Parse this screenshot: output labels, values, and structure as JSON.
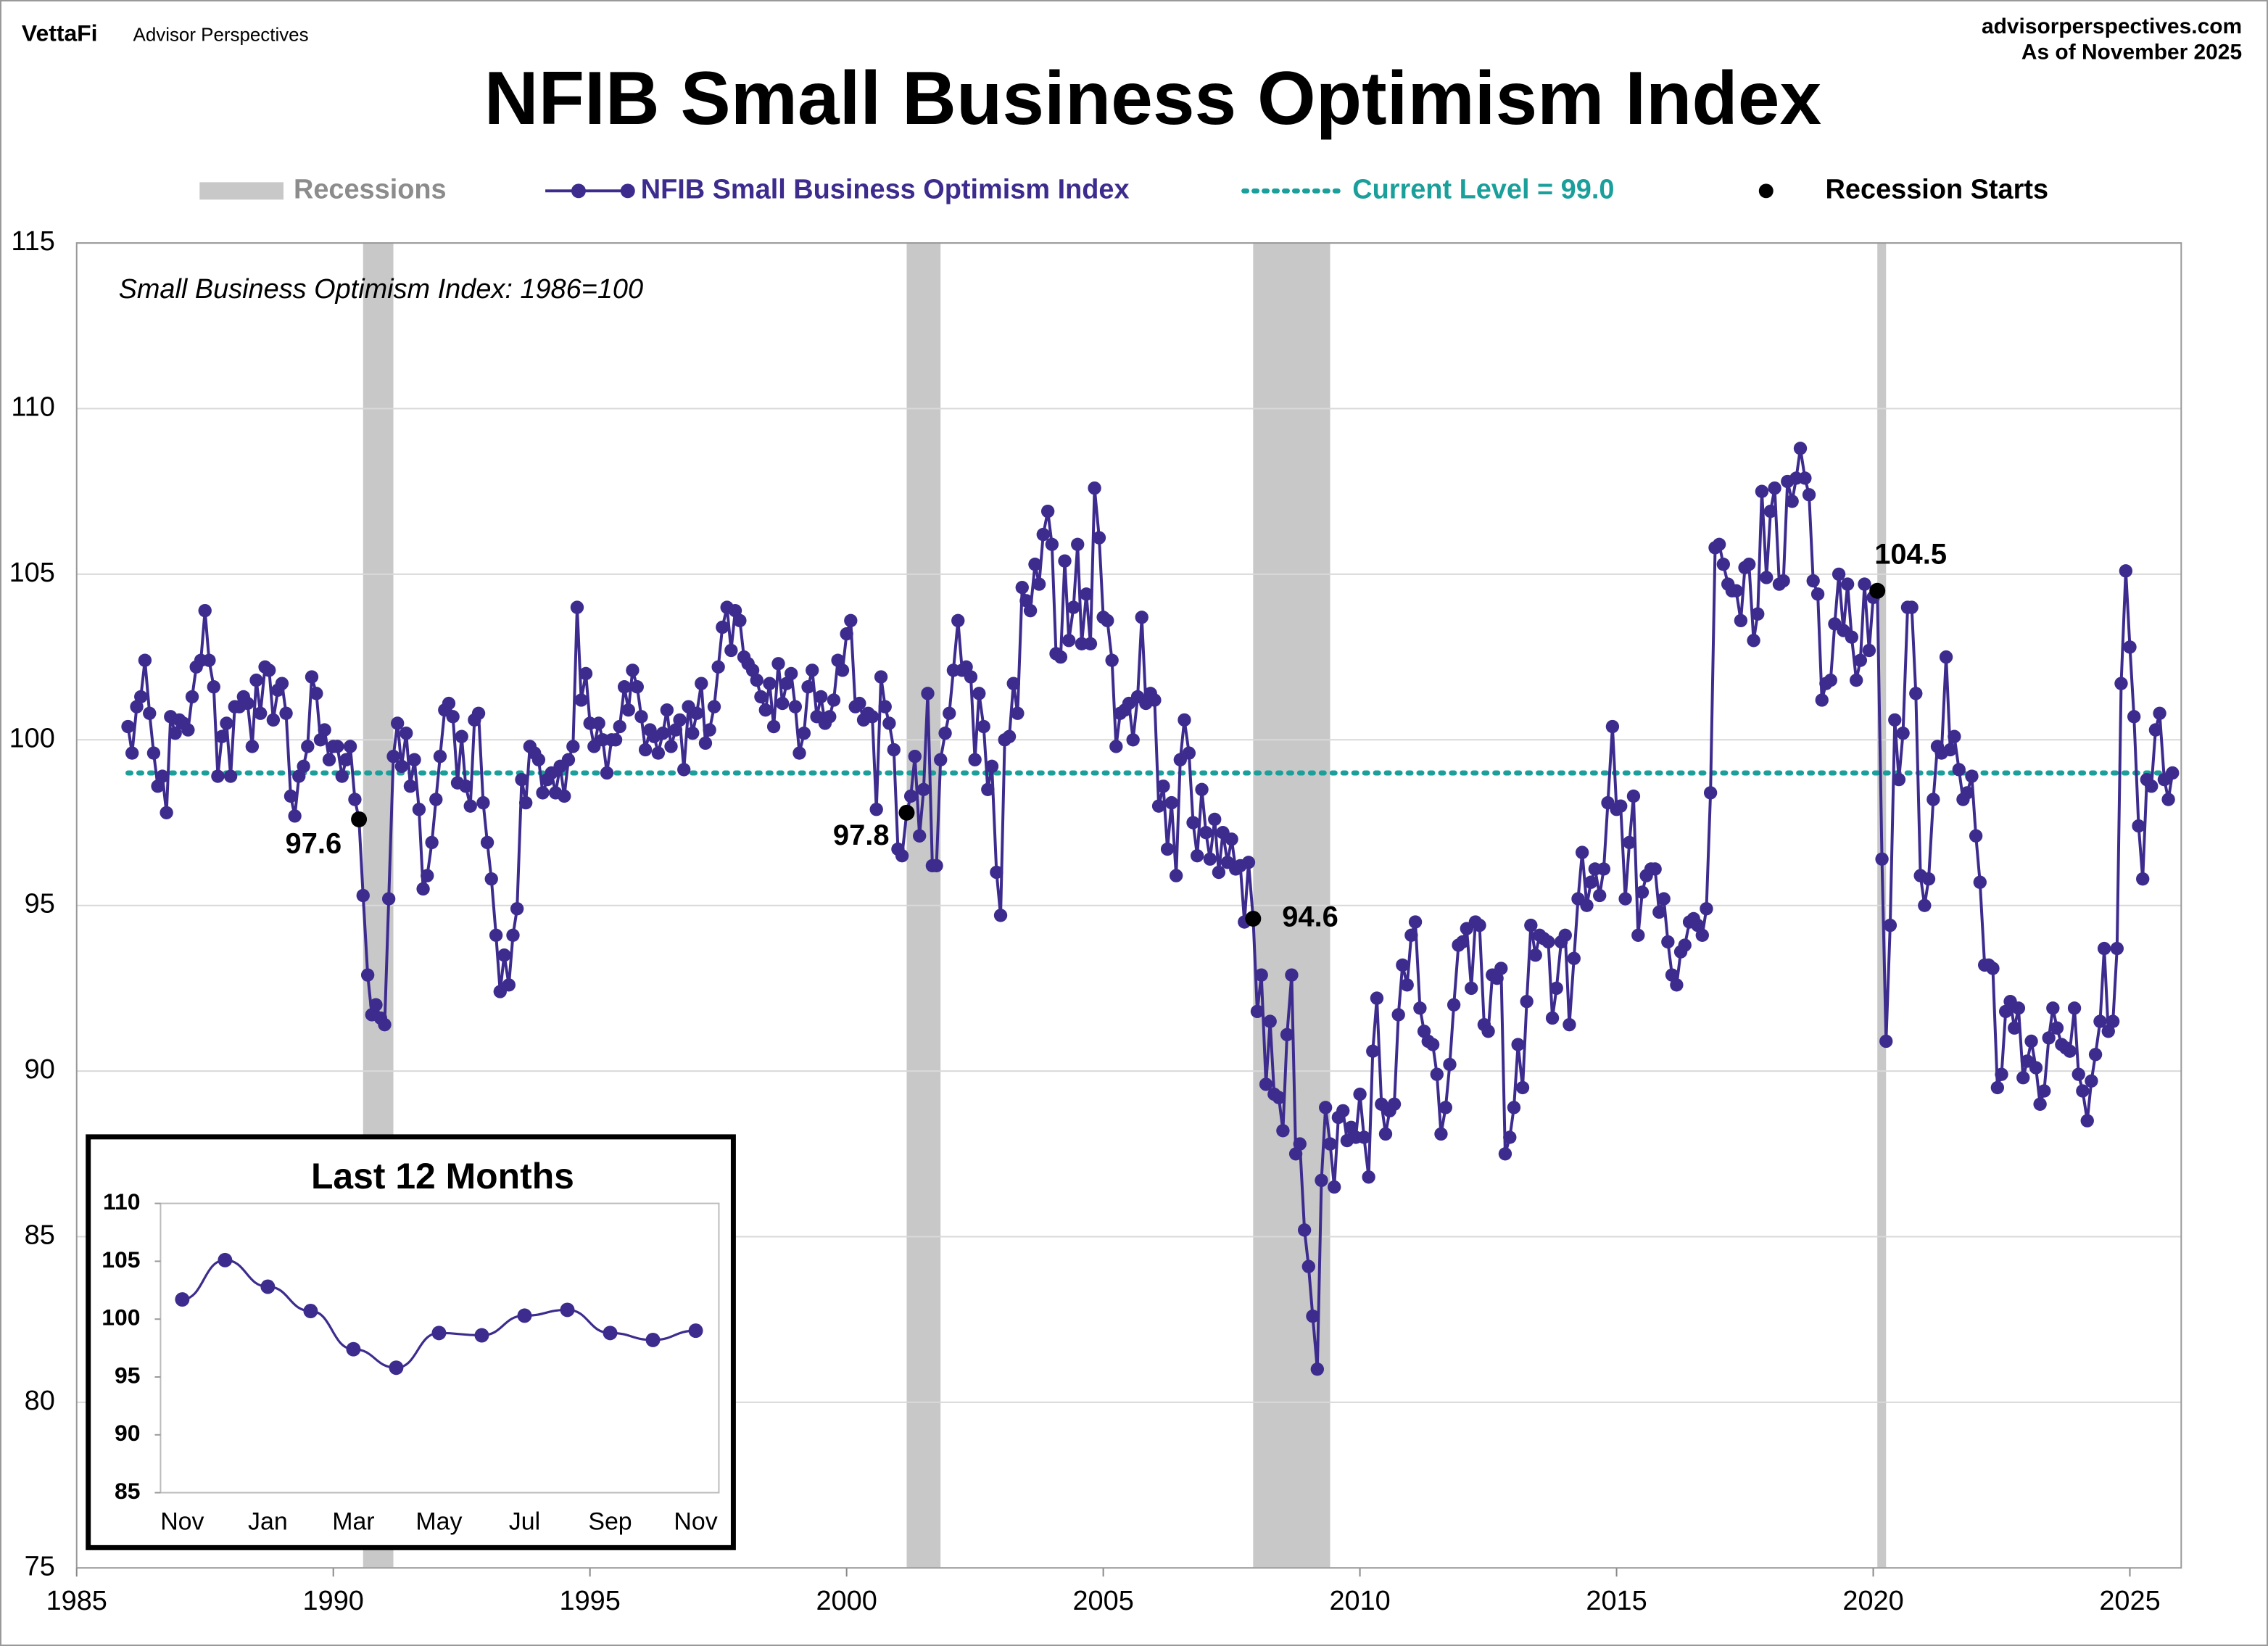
{
  "header": {
    "brand": "VettaFi",
    "brand_sub": "Advisor Perspectives",
    "site": "advisorperspectives.com",
    "as_of": "As of November 2025"
  },
  "chart_data": [
    {
      "type": "line",
      "title": "NFIB Small Business Optimism Index",
      "annotation": "Small Business Optimism Index: 1986=100",
      "xlim": [
        1985,
        2026
      ],
      "xticks": [
        1985,
        1990,
        1995,
        2000,
        2005,
        2010,
        2015,
        2020,
        2025
      ],
      "ylim": [
        75,
        115
      ],
      "yticks": [
        75,
        80,
        85,
        90,
        95,
        100,
        105,
        110,
        115
      ],
      "grid": true,
      "recessions": {
        "name": "Recessions",
        "color": "#c8c8c8",
        "spans": [
          [
            1990.58,
            1991.17
          ],
          [
            2001.17,
            2001.83
          ],
          [
            2007.92,
            2009.42
          ],
          [
            2020.08,
            2020.25
          ]
        ]
      },
      "current_level": {
        "name": "Current Level = 99.0",
        "color": "#1a9f9b",
        "value": 99.0
      },
      "recession_starts": {
        "name": "Recession Starts",
        "color": "#000000",
        "x": [
          1990.5,
          2001.17,
          2007.92,
          2020.08
        ],
        "values": [
          97.6,
          97.8,
          94.6,
          104.5
        ]
      },
      "x": [
        1986,
        1986.08,
        1986.17,
        1986.25,
        1986.33,
        1986.42,
        1986.5,
        1986.58,
        1986.67,
        1986.75,
        1986.83,
        1986.92,
        1987,
        1987.08,
        1987.17,
        1987.25,
        1987.33,
        1987.42,
        1987.5,
        1987.58,
        1987.67,
        1987.75,
        1987.83,
        1987.92,
        1988,
        1988.08,
        1988.17,
        1988.25,
        1988.33,
        1988.42,
        1988.5,
        1988.58,
        1988.67,
        1988.75,
        1988.83,
        1988.92,
        1989,
        1989.08,
        1989.17,
        1989.25,
        1989.33,
        1989.42,
        1989.5,
        1989.58,
        1989.67,
        1989.75,
        1989.83,
        1989.92,
        1990,
        1990.08,
        1990.17,
        1990.25,
        1990.33,
        1990.42,
        1990.5,
        1990.58,
        1990.67,
        1990.75,
        1990.83,
        1990.92,
        1991,
        1991.08,
        1991.17,
        1991.25,
        1991.33,
        1991.42,
        1991.5,
        1991.58,
        1991.67,
        1991.75,
        1991.83,
        1991.92,
        1992,
        1992.08,
        1992.17,
        1992.25,
        1992.33,
        1992.42,
        1992.5,
        1992.58,
        1992.67,
        1992.75,
        1992.83,
        1992.92,
        1993,
        1993.08,
        1993.17,
        1993.25,
        1993.33,
        1993.42,
        1993.5,
        1993.58,
        1993.67,
        1993.75,
        1993.83,
        1993.92,
        1994,
        1994.08,
        1994.17,
        1994.25,
        1994.33,
        1994.42,
        1994.5,
        1994.58,
        1994.67,
        1994.75,
        1994.83,
        1994.92,
        1995,
        1995.08,
        1995.17,
        1995.25,
        1995.33,
        1995.42,
        1995.5,
        1995.58,
        1995.67,
        1995.75,
        1995.83,
        1995.92,
        1996,
        1996.08,
        1996.17,
        1996.25,
        1996.33,
        1996.42,
        1996.5,
        1996.58,
        1996.67,
        1996.75,
        1996.83,
        1996.92,
        1997,
        1997.08,
        1997.17,
        1997.25,
        1997.33,
        1997.42,
        1997.5,
        1997.58,
        1997.67,
        1997.75,
        1997.83,
        1997.92,
        1998,
        1998.08,
        1998.17,
        1998.25,
        1998.33,
        1998.42,
        1998.5,
        1998.58,
        1998.67,
        1998.75,
        1998.83,
        1998.92,
        1999,
        1999.08,
        1999.17,
        1999.25,
        1999.33,
        1999.42,
        1999.5,
        1999.58,
        1999.67,
        1999.75,
        1999.83,
        1999.92,
        2000,
        2000.08,
        2000.17,
        2000.25,
        2000.33,
        2000.42,
        2000.5,
        2000.58,
        2000.67,
        2000.75,
        2000.83,
        2000.92,
        2001,
        2001.08,
        2001.17,
        2001.25,
        2001.33,
        2001.42,
        2001.5,
        2001.58,
        2001.67,
        2001.75,
        2001.83,
        2001.92,
        2002,
        2002.08,
        2002.17,
        2002.25,
        2002.33,
        2002.42,
        2002.5,
        2002.58,
        2002.67,
        2002.75,
        2002.83,
        2002.92,
        2003,
        2003.08,
        2003.17,
        2003.25,
        2003.33,
        2003.42,
        2003.5,
        2003.58,
        2003.67,
        2003.75,
        2003.83,
        2003.92,
        2004,
        2004.08,
        2004.17,
        2004.25,
        2004.33,
        2004.42,
        2004.5,
        2004.58,
        2004.67,
        2004.75,
        2004.83,
        2004.92,
        2005,
        2005.08,
        2005.17,
        2005.25,
        2005.33,
        2005.42,
        2005.5,
        2005.58,
        2005.67,
        2005.75,
        2005.83,
        2005.92,
        2006,
        2006.08,
        2006.17,
        2006.25,
        2006.33,
        2006.42,
        2006.5,
        2006.58,
        2006.67,
        2006.75,
        2006.83,
        2006.92,
        2007,
        2007.08,
        2007.17,
        2007.25,
        2007.33,
        2007.42,
        2007.5,
        2007.58,
        2007.67,
        2007.75,
        2007.83,
        2007.92,
        2008,
        2008.08,
        2008.17,
        2008.25,
        2008.33,
        2008.42,
        2008.5,
        2008.58,
        2008.67,
        2008.75,
        2008.83,
        2008.92,
        2009,
        2009.08,
        2009.17,
        2009.25,
        2009.33,
        2009.42,
        2009.5,
        2009.58,
        2009.67,
        2009.75,
        2009.83,
        2009.92,
        2010,
        2010.08,
        2010.17,
        2010.25,
        2010.33,
        2010.42,
        2010.5,
        2010.58,
        2010.67,
        2010.75,
        2010.83,
        2010.92,
        2011,
        2011.08,
        2011.17,
        2011.25,
        2011.33,
        2011.42,
        2011.5,
        2011.58,
        2011.67,
        2011.75,
        2011.83,
        2011.92,
        2012,
        2012.08,
        2012.17,
        2012.25,
        2012.33,
        2012.42,
        2012.5,
        2012.58,
        2012.67,
        2012.75,
        2012.83,
        2012.92,
        2013,
        2013.08,
        2013.17,
        2013.25,
        2013.33,
        2013.42,
        2013.5,
        2013.58,
        2013.67,
        2013.75,
        2013.83,
        2013.92,
        2014,
        2014.08,
        2014.17,
        2014.25,
        2014.33,
        2014.42,
        2014.5,
        2014.58,
        2014.67,
        2014.75,
        2014.83,
        2014.92,
        2015,
        2015.08,
        2015.17,
        2015.25,
        2015.33,
        2015.42,
        2015.5,
        2015.58,
        2015.67,
        2015.75,
        2015.83,
        2015.92,
        2016,
        2016.08,
        2016.17,
        2016.25,
        2016.33,
        2016.42,
        2016.5,
        2016.58,
        2016.67,
        2016.75,
        2016.83,
        2016.92,
        2017,
        2017.08,
        2017.17,
        2017.25,
        2017.33,
        2017.42,
        2017.5,
        2017.58,
        2017.67,
        2017.75,
        2017.83,
        2017.92,
        2018,
        2018.08,
        2018.17,
        2018.25,
        2018.33,
        2018.42,
        2018.5,
        2018.58,
        2018.67,
        2018.75,
        2018.83,
        2018.92,
        2019,
        2019.08,
        2019.17,
        2019.25,
        2019.33,
        2019.42,
        2019.5,
        2019.58,
        2019.67,
        2019.75,
        2019.83,
        2019.92,
        2020,
        2020.08,
        2020.17,
        2020.25,
        2020.33,
        2020.42,
        2020.5,
        2020.58,
        2020.67,
        2020.75,
        2020.83,
        2020.92,
        2021,
        2021.08,
        2021.17,
        2021.25,
        2021.33,
        2021.42,
        2021.5,
        2021.58,
        2021.67,
        2021.75,
        2021.83,
        2021.92,
        2022,
        2022.08,
        2022.17,
        2022.25,
        2022.33,
        2022.42,
        2022.5,
        2022.58,
        2022.67,
        2022.75,
        2022.83,
        2022.92,
        2023,
        2023.08,
        2023.17,
        2023.25,
        2023.33,
        2023.42,
        2023.5,
        2023.58,
        2023.67,
        2023.75,
        2023.83,
        2023.92,
        2024,
        2024.08,
        2024.17,
        2024.25,
        2024.33,
        2024.42,
        2024.5,
        2024.58,
        2024.67,
        2024.75,
        2024.83,
        2024.92,
        2025,
        2025.08,
        2025.17,
        2025.25,
        2025.33,
        2025.42,
        2025.5,
        2025.58,
        2025.67,
        2025.75,
        2025.83
      ],
      "series": [
        {
          "name": "NFIB Small Business Optimism Index",
          "color": "#3d2b8e",
          "values": [
            100.4,
            99.6,
            101.0,
            101.3,
            102.4,
            100.8,
            99.6,
            98.6,
            98.9,
            97.8,
            100.7,
            100.2,
            100.6,
            100.5,
            100.3,
            101.3,
            102.2,
            102.4,
            103.9,
            102.4,
            101.6,
            98.9,
            100.1,
            100.5,
            98.9,
            101.0,
            101.0,
            101.3,
            101.1,
            99.8,
            101.8,
            100.8,
            102.2,
            102.1,
            100.6,
            101.5,
            101.7,
            100.8,
            98.3,
            97.7,
            98.9,
            99.2,
            99.8,
            101.9,
            101.4,
            100.0,
            100.3,
            99.4,
            99.8,
            99.8,
            98.9,
            99.4,
            99.8,
            98.2,
            97.6,
            95.3,
            92.9,
            91.7,
            92.0,
            91.6,
            91.4,
            95.2,
            99.5,
            100.5,
            99.2,
            100.2,
            98.6,
            99.4,
            97.9,
            95.5,
            95.9,
            96.9,
            98.2,
            99.5,
            100.9,
            101.1,
            100.7,
            98.7,
            100.1,
            98.6,
            98.0,
            100.6,
            100.8,
            98.1,
            96.9,
            95.8,
            94.1,
            92.4,
            93.5,
            92.6,
            94.1,
            94.9,
            98.8,
            98.1,
            99.8,
            99.6,
            99.4,
            98.4,
            98.8,
            99.0,
            98.4,
            99.2,
            98.3,
            99.4,
            99.8,
            104.0,
            101.2,
            102.0,
            100.5,
            99.8,
            100.5,
            100.0,
            99.0,
            100.0,
            100.0,
            100.4,
            101.6,
            100.9,
            102.1,
            101.6,
            100.7,
            99.7,
            100.3,
            100.1,
            99.6,
            100.2,
            100.9,
            99.8,
            100.3,
            100.6,
            99.1,
            101.0,
            100.2,
            100.8,
            101.7,
            99.9,
            100.3,
            101.0,
            102.2,
            103.4,
            104.0,
            102.7,
            103.9,
            103.6,
            102.5,
            102.3,
            102.1,
            101.8,
            101.3,
            100.9,
            101.7,
            100.4,
            102.3,
            101.1,
            101.7,
            102.0,
            101.0,
            99.6,
            100.2,
            101.6,
            102.1,
            100.7,
            101.3,
            100.5,
            100.7,
            101.2,
            102.4,
            102.1,
            103.2,
            103.6,
            101.0,
            101.1,
            100.6,
            100.8,
            100.7,
            97.9,
            101.9,
            101.0,
            100.5,
            99.7,
            96.7,
            96.5,
            97.8,
            98.3,
            99.5,
            97.1,
            98.5,
            101.4,
            96.2,
            96.2,
            99.4,
            100.2,
            100.8,
            102.1,
            103.6,
            102.1,
            102.2,
            101.9,
            99.4,
            101.4,
            100.4,
            98.5,
            99.2,
            96.0,
            94.7,
            100.0,
            100.1,
            101.7,
            100.8,
            104.6,
            104.2,
            103.9,
            105.3,
            104.7,
            106.2,
            106.9,
            105.9,
            102.6,
            102.5,
            105.4,
            103.0,
            104.0,
            105.9,
            102.9,
            104.4,
            102.9,
            107.6,
            106.1,
            103.7,
            103.6,
            102.4,
            99.8,
            100.8,
            100.9,
            101.1,
            100.0,
            101.3,
            103.7,
            101.1,
            101.4,
            101.2,
            98.0,
            98.6,
            96.7,
            98.1,
            95.9,
            99.4,
            100.6,
            99.6,
            97.5,
            96.5,
            98.5,
            97.2,
            96.4,
            97.6,
            96.0,
            97.2,
            96.3,
            97.0,
            96.1,
            96.2,
            94.5,
            96.3,
            94.6,
            91.8,
            92.9,
            89.6,
            91.5,
            89.3,
            89.2,
            88.2,
            91.1,
            92.9,
            87.5,
            87.8,
            85.2,
            84.1,
            82.6,
            81.0,
            86.7,
            88.9,
            87.8,
            86.5,
            88.6,
            88.8,
            87.9,
            88.3,
            88.0,
            89.3,
            88.0,
            86.8,
            90.6,
            92.2,
            89.0,
            88.1,
            88.8,
            89.0,
            91.7,
            93.2,
            92.6,
            94.1,
            94.5,
            91.9,
            91.2,
            90.9,
            90.8,
            89.9,
            88.1,
            88.9,
            90.2,
            92.0,
            93.8,
            93.9,
            94.3,
            92.5,
            94.5,
            94.4,
            91.4,
            91.2,
            92.9,
            92.8,
            93.1,
            87.5,
            88.0,
            88.9,
            90.8,
            89.5,
            92.1,
            94.4,
            93.5,
            94.1,
            94.0,
            93.9,
            91.6,
            92.5,
            93.9,
            94.1,
            91.4,
            93.4,
            95.2,
            96.6,
            95.0,
            95.7,
            96.1,
            95.3,
            96.1,
            98.1,
            100.4,
            97.9,
            98.0,
            95.2,
            96.9,
            98.3,
            94.1,
            95.4,
            95.9,
            96.1,
            96.1,
            94.8,
            95.2,
            93.9,
            92.9,
            92.6,
            93.6,
            93.8,
            94.5,
            94.6,
            94.4,
            94.1,
            94.9,
            98.4,
            105.8,
            105.9,
            105.3,
            104.7,
            104.5,
            104.5,
            103.6,
            105.2,
            105.3,
            103.0,
            103.8,
            107.5,
            104.9,
            106.9,
            107.6,
            104.7,
            104.8,
            107.8,
            107.2,
            107.9,
            108.8,
            107.9,
            107.4,
            104.8,
            104.4,
            101.2,
            101.7,
            101.8,
            103.5,
            105.0,
            103.3,
            104.7,
            103.1,
            101.8,
            102.4,
            104.7,
            102.7,
            104.3,
            104.5,
            96.4,
            90.9,
            94.4,
            100.6,
            98.8,
            100.2,
            104.0,
            104.0,
            101.4,
            95.9,
            95.0,
            95.8,
            98.2,
            99.8,
            99.6,
            102.5,
            99.7,
            100.1,
            99.1,
            98.2,
            98.4,
            98.9,
            97.1,
            95.7,
            93.2,
            93.2,
            93.1,
            89.5,
            89.9,
            91.8,
            92.1,
            91.3,
            91.9,
            89.8,
            90.3,
            90.9,
            90.1,
            89.0,
            89.4,
            91.0,
            91.9,
            91.3,
            90.8,
            90.7,
            90.6,
            91.9,
            89.9,
            89.4,
            88.5,
            89.7,
            90.5,
            91.5,
            93.7,
            91.2,
            91.5,
            93.7,
            101.7,
            105.1,
            102.8,
            100.7,
            97.4,
            95.8,
            98.8,
            98.6,
            100.3,
            100.8,
            98.8,
            98.2,
            99.0
          ]
        }
      ]
    },
    {
      "type": "line",
      "title": "Last 12 Months",
      "color": "#3d2b8e",
      "categories": [
        "Nov",
        null,
        "Jan",
        null,
        "Mar",
        null,
        "May",
        null,
        "Jul",
        null,
        "Sep",
        null,
        "Nov"
      ],
      "values": [
        101.7,
        105.1,
        102.8,
        100.7,
        97.4,
        95.8,
        98.8,
        98.6,
        100.3,
        100.8,
        98.8,
        98.2,
        99.0
      ],
      "ylim": [
        85,
        110
      ],
      "yticks": [
        85,
        90,
        95,
        100,
        105,
        110
      ]
    }
  ]
}
